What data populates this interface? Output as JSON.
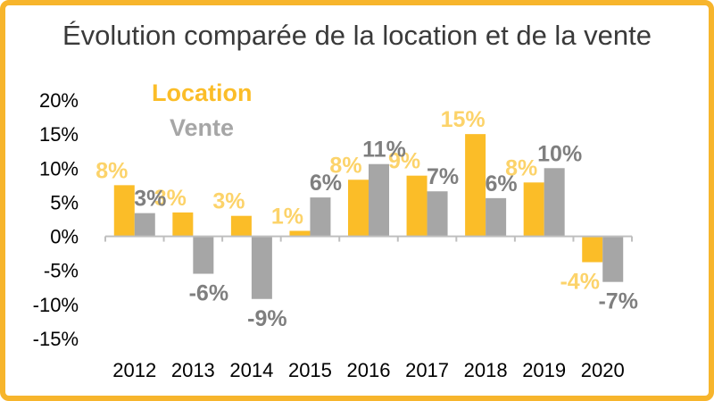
{
  "colors": {
    "location": "#fbbd28",
    "vente": "#a6a6a6",
    "location_label": "#fcd36a",
    "vente_label": "#7f7f7f",
    "axis": "#bfbfbf",
    "border": "#f7b52c"
  },
  "chart_data": {
    "type": "bar",
    "title": "Évolution comparée de la location et de la vente",
    "xlabel": "",
    "ylabel": "",
    "ylim": [
      -0.15,
      0.2
    ],
    "y_ticks": [
      "20%",
      "15%",
      "10%",
      "5%",
      "0%",
      "-5%",
      "-10%",
      "-15%"
    ],
    "y_tick_values": [
      0.2,
      0.15,
      0.1,
      0.05,
      0.0,
      -0.05,
      -0.1,
      -0.15
    ],
    "grid": false,
    "legend_position": "top-left",
    "categories": [
      "2012",
      "2013",
      "2014",
      "2015",
      "2016",
      "2017",
      "2018",
      "2019",
      "2020"
    ],
    "series": [
      {
        "name": "Location",
        "values": [
          0.075,
          0.035,
          0.03,
          0.008,
          0.083,
          0.089,
          0.15,
          0.079,
          -0.038
        ],
        "labels": [
          "8%",
          "3%",
          "3%",
          "1%",
          "8%",
          "9%",
          "15%",
          "8%",
          "-4%"
        ]
      },
      {
        "name": "Vente",
        "values": [
          0.034,
          -0.055,
          -0.092,
          0.057,
          0.106,
          0.066,
          0.056,
          0.1,
          -0.067
        ],
        "labels": [
          "3%",
          "-6%",
          "-9%",
          "6%",
          "11%",
          "7%",
          "6%",
          "10%",
          "-7%"
        ]
      }
    ]
  }
}
